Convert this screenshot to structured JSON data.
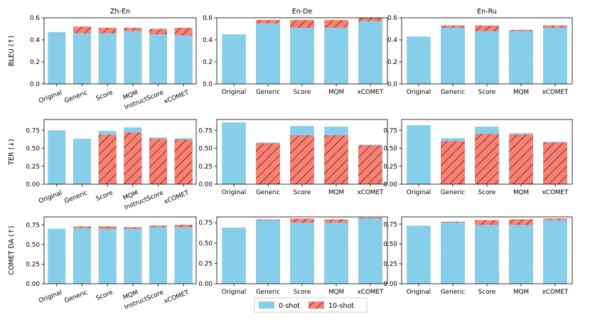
{
  "colors": {
    "zero_shot": "#87ceeb",
    "ten_shot": "#fa8072",
    "hatch": "#000000"
  },
  "legend": {
    "placement": "bottom-center",
    "entries": [
      "0-shot",
      "10-shot"
    ]
  },
  "columns": [
    "Zh-En",
    "En-De",
    "En-Ru"
  ],
  "row_labels": [
    "BLEU (↑)",
    "TER (↓)",
    "COMET DA (↑)"
  ],
  "chart_data": [
    {
      "type": "bar",
      "title": "Zh-En",
      "ylabel": "BLEU (↑)",
      "ylim": [
        0,
        0.6
      ],
      "yticks": [
        "0.0",
        "0.2",
        "0.4",
        "0.6"
      ],
      "tick_values": [
        0,
        0.2,
        0.4,
        0.6
      ],
      "categories": [
        "Original",
        "Generic",
        "Score",
        "MQM",
        "InstructScore",
        "xCOMET"
      ],
      "series": [
        {
          "name": "0-shot",
          "values": [
            0.47,
            0.46,
            0.46,
            0.48,
            0.45,
            0.44
          ]
        },
        {
          "name": "10-shot",
          "values": [
            null,
            0.52,
            0.51,
            0.51,
            0.5,
            0.51
          ]
        }
      ]
    },
    {
      "type": "bar",
      "title": "En-De",
      "ylabel": "",
      "ylim": [
        0,
        0.6
      ],
      "yticks": [
        "0.0",
        "0.2",
        "0.4",
        "0.6"
      ],
      "tick_values": [
        0,
        0.2,
        0.4,
        0.6
      ],
      "categories": [
        "Original",
        "Generic",
        "Score",
        "MQM",
        "xCOMET"
      ],
      "series": [
        {
          "name": "0-shot",
          "values": [
            0.45,
            0.55,
            0.51,
            0.51,
            0.57
          ]
        },
        {
          "name": "10-shot",
          "values": [
            null,
            0.58,
            0.58,
            0.58,
            0.6
          ]
        }
      ]
    },
    {
      "type": "bar",
      "title": "En-Ru",
      "ylabel": "",
      "ylim": [
        0,
        0.6
      ],
      "yticks": [
        "0.0",
        "0.2",
        "0.4",
        "0.6"
      ],
      "tick_values": [
        0,
        0.2,
        0.4,
        0.6
      ],
      "categories": [
        "Original",
        "Generic",
        "Score",
        "MQM",
        "xCOMET"
      ],
      "series": [
        {
          "name": "0-shot",
          "values": [
            0.43,
            0.51,
            0.48,
            0.48,
            0.51
          ]
        },
        {
          "name": "10-shot",
          "values": [
            null,
            0.53,
            0.53,
            0.49,
            0.53
          ]
        }
      ]
    },
    {
      "type": "bar",
      "title": "",
      "ylabel": "TER (↓)",
      "ylim": [
        0,
        0.9
      ],
      "yticks": [
        "0.00",
        "0.25",
        "0.50",
        "0.75"
      ],
      "tick_values": [
        0,
        0.25,
        0.5,
        0.75
      ],
      "categories": [
        "Original",
        "Generic",
        "Score",
        "MQM",
        "InstructScore",
        "xCOMET"
      ],
      "series": [
        {
          "name": "0-shot",
          "values": [
            0.75,
            0.63,
            0.74,
            0.79,
            0.65,
            0.64
          ]
        },
        {
          "name": "10-shot",
          "values": [
            null,
            0.63,
            0.69,
            0.72,
            0.63,
            0.62
          ]
        }
      ]
    },
    {
      "type": "bar",
      "title": "",
      "ylabel": "",
      "ylim": [
        0,
        0.9
      ],
      "yticks": [
        "0.00",
        "0.25",
        "0.50",
        "0.75"
      ],
      "tick_values": [
        0,
        0.25,
        0.5,
        0.75
      ],
      "categories": [
        "Original",
        "Generic",
        "Score",
        "MQM",
        "xCOMET"
      ],
      "series": [
        {
          "name": "0-shot",
          "values": [
            0.86,
            0.58,
            0.81,
            0.8,
            0.55
          ]
        },
        {
          "name": "10-shot",
          "values": [
            null,
            0.57,
            0.68,
            0.68,
            0.54
          ]
        }
      ]
    },
    {
      "type": "bar",
      "title": "",
      "ylabel": "",
      "ylim": [
        0,
        0.9
      ],
      "yticks": [
        "0.00",
        "0.25",
        "0.50",
        "0.75"
      ],
      "tick_values": [
        0,
        0.25,
        0.5,
        0.75
      ],
      "categories": [
        "Original",
        "Generic",
        "Score",
        "MQM",
        "xCOMET"
      ],
      "series": [
        {
          "name": "0-shot",
          "values": [
            0.82,
            0.64,
            0.8,
            0.71,
            0.59
          ]
        },
        {
          "name": "10-shot",
          "values": [
            null,
            0.6,
            0.7,
            0.69,
            0.58
          ]
        }
      ]
    },
    {
      "type": "bar",
      "title": "",
      "ylabel": "COMET DA (↑)",
      "ylim": [
        0,
        0.85
      ],
      "yticks": [
        "0.00",
        "0.25",
        "0.50",
        "0.75"
      ],
      "tick_values": [
        0,
        0.25,
        0.5,
        0.75
      ],
      "categories": [
        "Original",
        "Generic",
        "Score",
        "MQM",
        "InstructScore",
        "xCOMET"
      ],
      "series": [
        {
          "name": "0-shot",
          "values": [
            0.7,
            0.71,
            0.7,
            0.7,
            0.72,
            0.72
          ]
        },
        {
          "name": "10-shot",
          "values": [
            null,
            0.73,
            0.73,
            0.72,
            0.74,
            0.75
          ]
        }
      ]
    },
    {
      "type": "bar",
      "title": "",
      "ylabel": "",
      "ylim": [
        0,
        0.82
      ],
      "yticks": [
        "0.00",
        "0.25",
        "0.50",
        "0.75"
      ],
      "tick_values": [
        0,
        0.25,
        0.5,
        0.75
      ],
      "categories": [
        "Original",
        "Generic",
        "Score",
        "MQM",
        "xCOMET"
      ],
      "series": [
        {
          "name": "0-shot",
          "values": [
            0.69,
            0.78,
            0.75,
            0.75,
            0.8
          ]
        },
        {
          "name": "10-shot",
          "values": [
            null,
            0.79,
            0.8,
            0.79,
            0.81
          ]
        }
      ]
    },
    {
      "type": "bar",
      "title": "",
      "ylabel": "",
      "ylim": [
        0,
        0.84
      ],
      "yticks": [
        "0.00",
        "0.25",
        "0.50",
        "0.75"
      ],
      "tick_values": [
        0,
        0.25,
        0.5,
        0.75
      ],
      "categories": [
        "Original",
        "Generic",
        "Score",
        "MQM",
        "xCOMET"
      ],
      "series": [
        {
          "name": "0-shot",
          "values": [
            0.73,
            0.77,
            0.74,
            0.74,
            0.8
          ]
        },
        {
          "name": "10-shot",
          "values": [
            null,
            0.78,
            0.8,
            0.81,
            0.82
          ]
        }
      ]
    }
  ]
}
